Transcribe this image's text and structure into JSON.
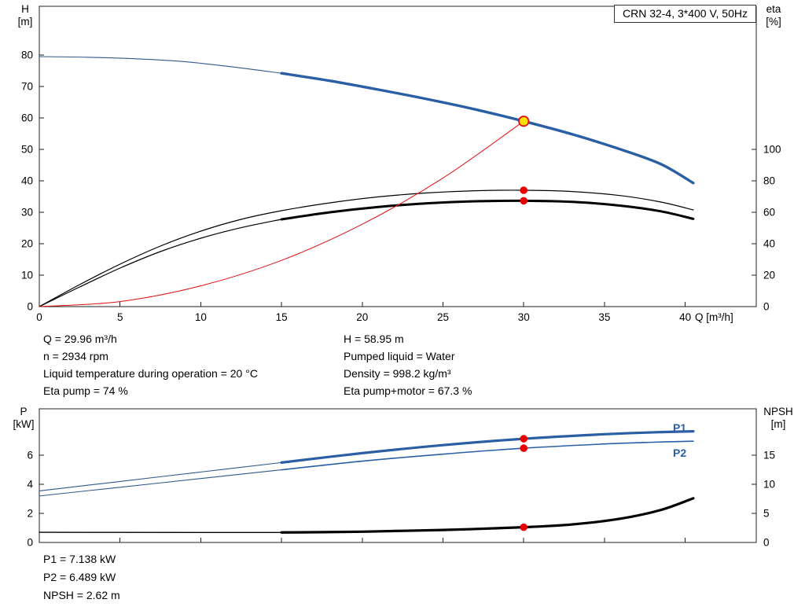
{
  "title_box": {
    "label": "CRN 32-4, 3*400 V, 50Hz"
  },
  "colors": {
    "curve_blue": "#2a5fa5",
    "thin_blue": "#31588c",
    "black": "#000000",
    "red": "#e01010",
    "dot_red": "#e60000",
    "duty_fill": "#ffdf00",
    "frame": "#222222",
    "label_blue": "#2a5fa5"
  },
  "axis_labels": {
    "top_left_1": "H",
    "top_left_2": "[m]",
    "top_right_1": "eta",
    "top_right_2": "[%]",
    "x": "Q [m³/h]",
    "bottom_left_1": "P",
    "bottom_left_2": "[kW]",
    "bottom_right_1": "NPSH",
    "bottom_right_2": "[m]",
    "p1": "P1",
    "p2": "P2"
  },
  "info_top": {
    "col1": [
      "Q = 29.96 m³/h",
      "n = 2934 rpm",
      "Liquid temperature during operation = 20 °C",
      "Eta pump = 74 %"
    ],
    "col2": [
      "H = 58.95 m",
      "Pumped liquid = Water",
      "Density = 998.2 kg/m³",
      "Eta pump+motor = 67.3 %"
    ]
  },
  "info_bottom": [
    "P1 = 7.138 kW",
    "P2 = 6.489 kW",
    "NPSH = 2.62 m"
  ],
  "chart_data": [
    {
      "id": "hq-eta-chart",
      "type": "line",
      "title": "CRN 32-4, 3*400 V, 50Hz",
      "xlabel": "Q [m³/h]",
      "ylabel_left": "H [m]",
      "ylabel_right": "eta [%]",
      "x_range": [
        0,
        44.4
      ],
      "y_left_range": [
        0,
        95.5
      ],
      "right_to_left_factor": 0.5,
      "x_ticks": [
        0,
        5,
        10,
        15,
        20,
        25,
        30,
        35,
        40
      ],
      "x_tick_labels": true,
      "y_left_ticks": [
        0,
        10,
        20,
        30,
        40,
        50,
        60,
        70,
        80
      ],
      "y_right_ticks": [
        0,
        20,
        40,
        60,
        80,
        100
      ],
      "grid": false,
      "series": [
        {
          "name": "head-curve-low-flow",
          "axis": "left",
          "unit": "m",
          "color": "#31588c",
          "width": 1.1,
          "points": [
            [
              0,
              79.5
            ],
            [
              3,
              79.3
            ],
            [
              6,
              78.8
            ],
            [
              9,
              77.9
            ],
            [
              12,
              76.2
            ],
            [
              15,
              74.2
            ]
          ]
        },
        {
          "name": "head-curve",
          "axis": "left",
          "unit": "m",
          "color": "#2a5fa5",
          "width": 3.4,
          "points": [
            [
              15,
              74.2
            ],
            [
              18,
              71.8
            ],
            [
              21,
              69.0
            ],
            [
              24,
              66.0
            ],
            [
              27,
              62.7
            ],
            [
              30,
              58.95
            ],
            [
              33,
              54.8
            ],
            [
              36,
              50.0
            ],
            [
              38.5,
              45.3
            ],
            [
              40.5,
              39.3
            ]
          ]
        },
        {
          "name": "eta-pump-curve",
          "axis": "right",
          "unit": "%",
          "color": "#000000",
          "width": 1.2,
          "points": [
            [
              0,
              0
            ],
            [
              2.5,
              14
            ],
            [
              5,
              27
            ],
            [
              7.5,
              38.5
            ],
            [
              10,
              48
            ],
            [
              12.5,
              55.5
            ],
            [
              15,
              61
            ],
            [
              18,
              66
            ],
            [
              21,
              69.8
            ],
            [
              24,
              72.3
            ],
            [
              27,
              73.7
            ],
            [
              30,
              74
            ],
            [
              33,
              73.2
            ],
            [
              36,
              70.6
            ],
            [
              38.5,
              66.5
            ],
            [
              40.5,
              61.5
            ]
          ]
        },
        {
          "name": "eta-pump-motor-low-flow",
          "axis": "right",
          "unit": "%",
          "color": "#000000",
          "width": 1.2,
          "points": [
            [
              0,
              0
            ],
            [
              2.5,
              12.5
            ],
            [
              5,
              24.5
            ],
            [
              7.5,
              35
            ],
            [
              10,
              43.5
            ],
            [
              12.5,
              50.2
            ],
            [
              15,
              55.5
            ]
          ]
        },
        {
          "name": "eta-pump-motor-curve",
          "axis": "right",
          "unit": "%",
          "color": "#000000",
          "width": 3,
          "points": [
            [
              15,
              55.5
            ],
            [
              18,
              60
            ],
            [
              21,
              63.4
            ],
            [
              24,
              65.7
            ],
            [
              27,
              67.0
            ],
            [
              30,
              67.3
            ],
            [
              33,
              66.6
            ],
            [
              36,
              64.2
            ],
            [
              38.5,
              60.6
            ],
            [
              40.5,
              55.8
            ]
          ]
        },
        {
          "name": "duty-flow-line",
          "axis": "left",
          "unit": "m",
          "color": "#e01010",
          "width": 1,
          "points": [
            [
              0,
              0
            ],
            [
              5,
              1.6
            ],
            [
              10,
              6.6
            ],
            [
              15,
              14.7
            ],
            [
              20,
              26.2
            ],
            [
              25,
              40.9
            ],
            [
              30,
              58.95
            ]
          ]
        }
      ],
      "markers": [
        {
          "name": "duty-point",
          "x": 30,
          "y": 58.95,
          "axis": "left",
          "style": "duty"
        },
        {
          "name": "eta-pump-point",
          "x": 30,
          "y": 74,
          "axis": "right",
          "style": "dot"
        },
        {
          "name": "eta-pump-motor-point",
          "x": 30,
          "y": 67.3,
          "axis": "right",
          "style": "dot"
        }
      ]
    },
    {
      "id": "power-npsh-chart",
      "type": "line",
      "title": "",
      "xlabel": "",
      "ylabel_left": "P [kW]",
      "ylabel_right": "NPSH [m]",
      "x_range": [
        0,
        44.4
      ],
      "y_left_range": [
        0,
        9.2
      ],
      "right_to_left_factor": 0.4,
      "x_ticks": [
        0,
        5,
        10,
        15,
        20,
        25,
        30,
        35,
        40
      ],
      "x_tick_labels": false,
      "y_left_ticks": [
        0,
        2,
        4,
        6
      ],
      "y_right_ticks": [
        0,
        5,
        10,
        15
      ],
      "grid": false,
      "series": [
        {
          "name": "p1-curve-low-flow",
          "axis": "left",
          "unit": "kW",
          "color": "#31588c",
          "width": 1.1,
          "points": [
            [
              0,
              3.55
            ],
            [
              5,
              4.2
            ],
            [
              10,
              4.85
            ],
            [
              15,
              5.5
            ]
          ]
        },
        {
          "name": "p1-curve",
          "axis": "left",
          "unit": "kW",
          "color": "#2a5fa5",
          "width": 3.2,
          "points": [
            [
              15,
              5.5
            ],
            [
              20,
              6.15
            ],
            [
              25,
              6.7
            ],
            [
              30,
              7.138
            ],
            [
              35,
              7.45
            ],
            [
              38,
              7.58
            ],
            [
              40.5,
              7.65
            ]
          ]
        },
        {
          "name": "p2-curve-low-flow",
          "axis": "left",
          "unit": "kW",
          "color": "#31588c",
          "width": 1.1,
          "points": [
            [
              0,
              3.2
            ],
            [
              5,
              3.8
            ],
            [
              10,
              4.4
            ],
            [
              15,
              5.0
            ]
          ]
        },
        {
          "name": "p2-curve",
          "axis": "left",
          "unit": "kW",
          "color": "#2a5fa5",
          "width": 1.6,
          "points": [
            [
              15,
              5.0
            ],
            [
              20,
              5.6
            ],
            [
              25,
              6.08
            ],
            [
              30,
              6.489
            ],
            [
              35,
              6.78
            ],
            [
              38,
              6.9
            ],
            [
              40.5,
              6.97
            ]
          ]
        },
        {
          "name": "npsh-curve-low-flow",
          "axis": "right",
          "unit": "m",
          "color": "#000000",
          "width": 1.4,
          "points": [
            [
              0,
              1.75
            ],
            [
              5,
              1.73
            ],
            [
              10,
              1.72
            ],
            [
              15,
              1.72
            ]
          ]
        },
        {
          "name": "npsh-curve",
          "axis": "right",
          "unit": "m",
          "color": "#000000",
          "width": 3.2,
          "points": [
            [
              15,
              1.72
            ],
            [
              20,
              1.85
            ],
            [
              25,
              2.15
            ],
            [
              30,
              2.62
            ],
            [
              33,
              3.1
            ],
            [
              36,
              4.1
            ],
            [
              38.5,
              5.6
            ],
            [
              40.5,
              7.6
            ]
          ]
        }
      ],
      "markers": [
        {
          "name": "p1-point",
          "x": 30,
          "y": 7.138,
          "axis": "left",
          "style": "dot"
        },
        {
          "name": "p2-point",
          "x": 30,
          "y": 6.489,
          "axis": "left",
          "style": "dot"
        },
        {
          "name": "npsh-point",
          "x": 30,
          "y": 2.62,
          "axis": "right",
          "style": "dot"
        }
      ]
    }
  ]
}
